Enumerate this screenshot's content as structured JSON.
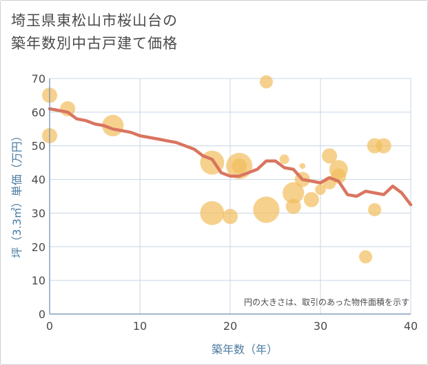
{
  "title_line1": "埼玉県東松山市桜山台の",
  "title_line2": "築年数別中古戸建て価格",
  "chart_data": {
    "type": "scatter",
    "xlabel": "築年数（年）",
    "ylabel": "坪（3.3㎡）単価（万円）",
    "xlim": [
      0,
      40
    ],
    "ylim": [
      0,
      70
    ],
    "xticks": [
      0,
      10,
      20,
      30,
      40
    ],
    "yticks": [
      0,
      10,
      20,
      30,
      40,
      50,
      60,
      70
    ],
    "grid": true,
    "note": "円の大きさは、取引のあった物件面積を示す",
    "colors": {
      "bubble": "#f2bd5c",
      "line": "#d97560",
      "grid": "#c8d4e4",
      "axis": "#6a8ab0"
    },
    "bubbles": [
      {
        "x": 0,
        "y": 65,
        "size": 2
      },
      {
        "x": 0,
        "y": 53,
        "size": 2
      },
      {
        "x": 2,
        "y": 61,
        "size": 2
      },
      {
        "x": 7,
        "y": 56,
        "size": 4
      },
      {
        "x": 18,
        "y": 45,
        "size": 5
      },
      {
        "x": 18,
        "y": 30,
        "size": 5
      },
      {
        "x": 20,
        "y": 29,
        "size": 2
      },
      {
        "x": 21,
        "y": 44,
        "size": 6
      },
      {
        "x": 21,
        "y": 44,
        "size": 2
      },
      {
        "x": 24,
        "y": 69,
        "size": 1.5
      },
      {
        "x": 24,
        "y": 31,
        "size": 6
      },
      {
        "x": 26,
        "y": 46,
        "size": 0.8
      },
      {
        "x": 27,
        "y": 36,
        "size": 4
      },
      {
        "x": 27,
        "y": 32,
        "size": 2
      },
      {
        "x": 28,
        "y": 44,
        "size": 0.3
      },
      {
        "x": 28,
        "y": 40,
        "size": 2
      },
      {
        "x": 29,
        "y": 34,
        "size": 2
      },
      {
        "x": 30,
        "y": 37,
        "size": 1
      },
      {
        "x": 31,
        "y": 47,
        "size": 2
      },
      {
        "x": 31,
        "y": 39,
        "size": 1.5
      },
      {
        "x": 32,
        "y": 43,
        "size": 3
      },
      {
        "x": 32,
        "y": 41,
        "size": 2
      },
      {
        "x": 35,
        "y": 17,
        "size": 1.5
      },
      {
        "x": 36,
        "y": 50,
        "size": 2
      },
      {
        "x": 36,
        "y": 31,
        "size": 1.5
      },
      {
        "x": 37,
        "y": 50,
        "size": 2
      }
    ],
    "trend": {
      "x": [
        0,
        1,
        2,
        3,
        4,
        5,
        6,
        7,
        8,
        9,
        10,
        11,
        12,
        13,
        14,
        15,
        16,
        17,
        18,
        19,
        20,
        21,
        22,
        23,
        24,
        25,
        26,
        27,
        28,
        29,
        30,
        31,
        32,
        33,
        34,
        35,
        36,
        37,
        38,
        39,
        40
      ],
      "y": [
        61,
        60.5,
        60,
        58,
        57.5,
        56.5,
        56,
        55,
        54.5,
        54,
        53,
        52.5,
        52,
        51.5,
        51,
        50,
        49,
        47,
        46,
        42,
        41,
        41,
        42,
        43,
        45.5,
        45.5,
        43.5,
        43,
        40,
        39.5,
        39,
        40.5,
        39.5,
        35.5,
        35,
        36.5,
        36,
        35.5,
        38,
        36,
        32.5
      ]
    }
  }
}
